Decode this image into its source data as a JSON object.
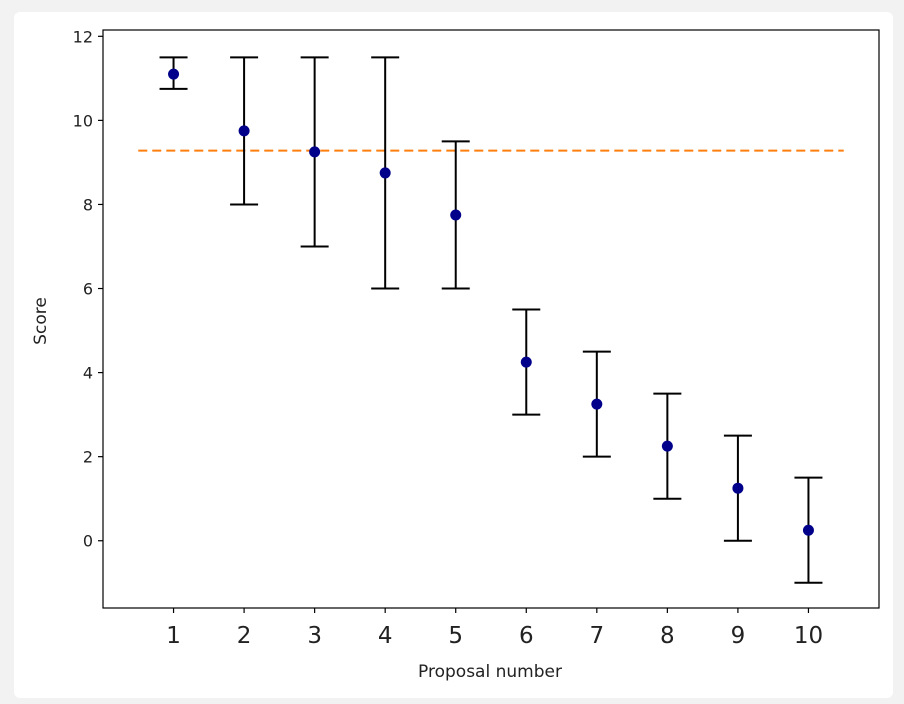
{
  "chart_data": {
    "type": "scatter",
    "title": "",
    "xlabel": "Proposal number",
    "ylabel": "Score",
    "x": [
      1,
      2,
      3,
      4,
      5,
      6,
      7,
      8,
      9,
      10
    ],
    "x_tick_labels": [
      "1",
      "2",
      "3",
      "4",
      "5",
      "6",
      "7",
      "8",
      "9",
      "10"
    ],
    "y_ticks": [
      0,
      2,
      4,
      6,
      8,
      10,
      12
    ],
    "y_tick_labels": [
      "0",
      "2",
      "4",
      "6",
      "8",
      "10",
      "12"
    ],
    "xlim": [
      0.0,
      11.0
    ],
    "ylim": [
      -1.6,
      12.15
    ],
    "series": [
      {
        "values": [
          11.1,
          9.75,
          9.25,
          8.75,
          7.75,
          4.25,
          3.25,
          2.25,
          1.25,
          0.25
        ],
        "error_low": [
          10.75,
          8.0,
          7.0,
          6.0,
          6.0,
          3.0,
          2.0,
          1.0,
          0.0,
          -1.0
        ],
        "error_high": [
          11.5,
          11.5,
          11.5,
          11.5,
          9.5,
          5.5,
          4.5,
          3.5,
          2.5,
          1.5
        ],
        "marker_color": "#00008b",
        "error_bar_color": "#000000"
      }
    ],
    "reference_line": {
      "y": 9.28,
      "x_range": [
        0.5,
        10.5
      ],
      "style": "dashed",
      "color": "#ff7f0e"
    },
    "grid": false,
    "legend": "none"
  }
}
